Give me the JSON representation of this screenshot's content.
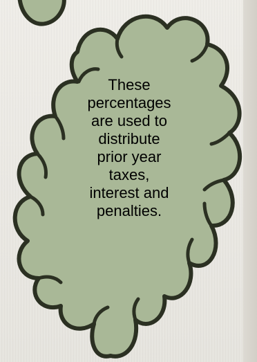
{
  "callout": {
    "lines": [
      "These",
      "percentages",
      "are used to",
      "distribute",
      "prior year",
      "taxes,",
      "interest and",
      "penalties."
    ],
    "fill_color": "#a9b897",
    "stroke_color": "#2b3022",
    "text_color": "#000000"
  },
  "background_color": "#eae8e3"
}
